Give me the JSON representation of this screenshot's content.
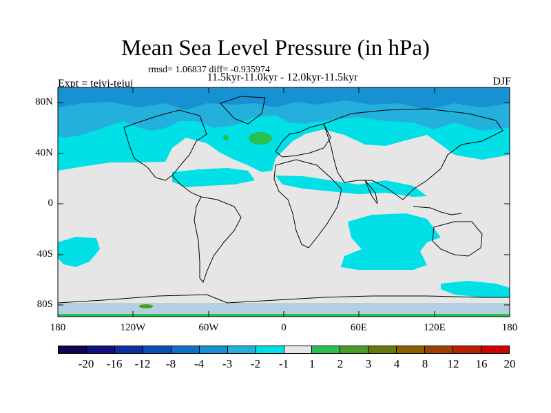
{
  "title": "Mean Sea Level Pressure (in hPa)",
  "stats": "rmsd= 1.06837  diff= -0.935974",
  "subtitle": "11.5kyr-11.0kyr - 12.0kyr-11.5kyr",
  "left_label": "Expt = tejvj-tejuj",
  "right_label": "DJF",
  "lat_ticks": [
    "80N",
    "40N",
    "0",
    "40S",
    "80S"
  ],
  "lon_ticks": [
    "180",
    "120W",
    "60W",
    "0",
    "60E",
    "120E",
    "180"
  ],
  "colorbar": {
    "colors": [
      "#120050",
      "#101080",
      "#0e2fa0",
      "#0a50b4",
      "#1070c6",
      "#1891d2",
      "#24b0dc",
      "#00e0e6",
      "#e6e6e6",
      "#28c050",
      "#4c9b28",
      "#667a10",
      "#8a6000",
      "#a04000",
      "#b82000",
      "#d00000"
    ],
    "labels": [
      "-20",
      "-16",
      "-12",
      "-8",
      "-4",
      "-3",
      "-2",
      "-1",
      "1",
      "2",
      "3",
      "4",
      "8",
      "12",
      "16",
      "20"
    ]
  },
  "colors": {
    "land_outline": "#000000",
    "background_field": "#e6e6e6",
    "neg1": "#00e0e6",
    "neg2": "#24b0dc",
    "neg3": "#1891d2",
    "pos1": "#28c050"
  }
}
